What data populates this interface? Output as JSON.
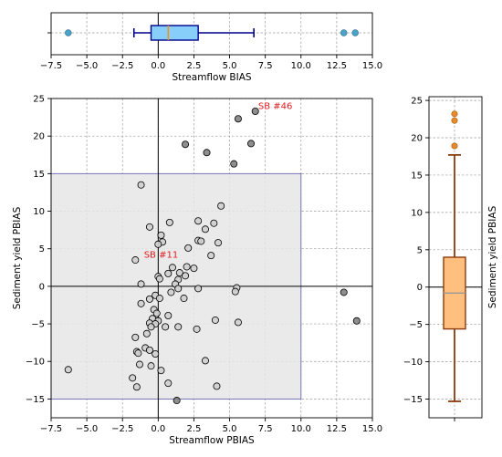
{
  "chart_data": [
    {
      "type": "boxplot",
      "orientation": "horizontal",
      "xlabel": "Streamflow BIAS",
      "xlim": [
        -7.5,
        15.0
      ],
      "xticks": [
        -7.5,
        -5.0,
        -2.5,
        0.0,
        2.5,
        5.0,
        7.5,
        10.0,
        12.5,
        15.0
      ],
      "stats": {
        "whisker_low": -1.7,
        "q1": -0.5,
        "median": 0.7,
        "q3": 2.8,
        "whisker_high": 6.7
      },
      "outliers": [
        -6.3,
        13.0,
        13.8
      ],
      "colors": {
        "box_fill": "#87cefa",
        "box_edge": "#00008b",
        "median": "#ff8c00",
        "outlier": "#4aa3c7"
      },
      "zero_line": true,
      "grid": true
    },
    {
      "type": "scatter",
      "xlabel": "Streamflow PBIAS",
      "ylabel": "Sediment yield PBIAS",
      "xlim": [
        -7.5,
        15.0
      ],
      "ylim": [
        -17.5,
        25.0
      ],
      "xticks": [
        -7.5,
        -5.0,
        -2.5,
        0.0,
        2.5,
        5.0,
        7.5,
        10.0,
        12.5,
        15.0
      ],
      "yticks": [
        -15,
        -10,
        -5,
        0,
        5,
        10,
        15,
        20,
        25
      ],
      "shaded_region": {
        "x": [
          -7.5,
          10.0
        ],
        "y": [
          -15.0,
          15.0
        ],
        "fill": "#e6e6e6",
        "edge": "#6a6ab8"
      },
      "zero_lines": true,
      "grid": true,
      "annotations": [
        {
          "text": "SB #46",
          "x": 7.0,
          "y": 23.6
        },
        {
          "text": "SB #11",
          "x": -1.0,
          "y": 3.8
        }
      ],
      "points": [
        {
          "x": -6.3,
          "y": -11.1,
          "in_range": true
        },
        {
          "x": -1.2,
          "y": 13.5,
          "in_range": true
        },
        {
          "x": -0.6,
          "y": 7.9,
          "in_range": true
        },
        {
          "x": 0.2,
          "y": 6.8,
          "in_range": true
        },
        {
          "x": 0.3,
          "y": 5.9,
          "in_range": true
        },
        {
          "x": 0.0,
          "y": 5.6,
          "in_range": true
        },
        {
          "x": 0.8,
          "y": 8.5,
          "in_range": true
        },
        {
          "x": 2.8,
          "y": 8.7,
          "in_range": true
        },
        {
          "x": 3.3,
          "y": 7.6,
          "in_range": true
        },
        {
          "x": 3.9,
          "y": 8.4,
          "in_range": true
        },
        {
          "x": 4.4,
          "y": 10.7,
          "in_range": true
        },
        {
          "x": 2.8,
          "y": 6.1,
          "in_range": true
        },
        {
          "x": 3.0,
          "y": 6.0,
          "in_range": true
        },
        {
          "x": 2.1,
          "y": 5.1,
          "in_range": true
        },
        {
          "x": 4.2,
          "y": 5.8,
          "in_range": true
        },
        {
          "x": 3.7,
          "y": 4.1,
          "in_range": true
        },
        {
          "x": -1.6,
          "y": 3.5,
          "in_range": true
        },
        {
          "x": 1.0,
          "y": 2.5,
          "in_range": true
        },
        {
          "x": 2.0,
          "y": 2.6,
          "in_range": true
        },
        {
          "x": 2.5,
          "y": 2.4,
          "in_range": true
        },
        {
          "x": 0.7,
          "y": 1.7,
          "in_range": true
        },
        {
          "x": 1.5,
          "y": 1.8,
          "in_range": true
        },
        {
          "x": 1.9,
          "y": 1.4,
          "in_range": true
        },
        {
          "x": 1.4,
          "y": 0.9,
          "in_range": true
        },
        {
          "x": 0.0,
          "y": 1.3,
          "in_range": true
        },
        {
          "x": 0.1,
          "y": 1.0,
          "in_range": true
        },
        {
          "x": 1.2,
          "y": 0.3,
          "in_range": true
        },
        {
          "x": -1.2,
          "y": 0.3,
          "in_range": true
        },
        {
          "x": 1.4,
          "y": -0.3,
          "in_range": true
        },
        {
          "x": 2.8,
          "y": -0.3,
          "in_range": true
        },
        {
          "x": 0.9,
          "y": -0.8,
          "in_range": true
        },
        {
          "x": 1.8,
          "y": -1.6,
          "in_range": true
        },
        {
          "x": 5.5,
          "y": -0.2,
          "in_range": true
        },
        {
          "x": 5.4,
          "y": -0.7,
          "in_range": true
        },
        {
          "x": -0.2,
          "y": -1.2,
          "in_range": true
        },
        {
          "x": 0.1,
          "y": -1.6,
          "in_range": true
        },
        {
          "x": -0.6,
          "y": -1.7,
          "in_range": true
        },
        {
          "x": -1.2,
          "y": -2.3,
          "in_range": true
        },
        {
          "x": -0.3,
          "y": -3.1,
          "in_range": true
        },
        {
          "x": -0.1,
          "y": -3.6,
          "in_range": true
        },
        {
          "x": 0.7,
          "y": -3.9,
          "in_range": true
        },
        {
          "x": -0.4,
          "y": -4.3,
          "in_range": true
        },
        {
          "x": 0.0,
          "y": -4.6,
          "in_range": true
        },
        {
          "x": -0.6,
          "y": -4.9,
          "in_range": true
        },
        {
          "x": -0.2,
          "y": -5.0,
          "in_range": true
        },
        {
          "x": -0.5,
          "y": -5.4,
          "in_range": true
        },
        {
          "x": 0.5,
          "y": -5.4,
          "in_range": true
        },
        {
          "x": 1.4,
          "y": -5.4,
          "in_range": true
        },
        {
          "x": 2.7,
          "y": -5.7,
          "in_range": true
        },
        {
          "x": -0.8,
          "y": -6.3,
          "in_range": true
        },
        {
          "x": -1.6,
          "y": -6.8,
          "in_range": true
        },
        {
          "x": 4.0,
          "y": -4.5,
          "in_range": true
        },
        {
          "x": 5.6,
          "y": -4.8,
          "in_range": true
        },
        {
          "x": -0.9,
          "y": -8.2,
          "in_range": true
        },
        {
          "x": -1.5,
          "y": -8.7,
          "in_range": true
        },
        {
          "x": -1.4,
          "y": -8.9,
          "in_range": true
        },
        {
          "x": -0.6,
          "y": -8.5,
          "in_range": true
        },
        {
          "x": -0.2,
          "y": -9.0,
          "in_range": true
        },
        {
          "x": -1.3,
          "y": -10.4,
          "in_range": true
        },
        {
          "x": -0.5,
          "y": -10.6,
          "in_range": true
        },
        {
          "x": 0.2,
          "y": -11.2,
          "in_range": true
        },
        {
          "x": 3.3,
          "y": -9.9,
          "in_range": true
        },
        {
          "x": -1.8,
          "y": -12.2,
          "in_range": true
        },
        {
          "x": -1.5,
          "y": -13.4,
          "in_range": true
        },
        {
          "x": 0.7,
          "y": -12.9,
          "in_range": true
        },
        {
          "x": 4.1,
          "y": -13.3,
          "in_range": true
        },
        {
          "x": 1.3,
          "y": -15.2,
          "in_range": false
        },
        {
          "x": 1.9,
          "y": 18.9,
          "in_range": false
        },
        {
          "x": 3.4,
          "y": 17.8,
          "in_range": false
        },
        {
          "x": 5.3,
          "y": 16.3,
          "in_range": false
        },
        {
          "x": 5.6,
          "y": 22.3,
          "in_range": false
        },
        {
          "x": 6.5,
          "y": 19.0,
          "in_range": false
        },
        {
          "x": 6.8,
          "y": 23.3,
          "in_range": false
        },
        {
          "x": 13.0,
          "y": -0.8,
          "in_range": false
        },
        {
          "x": 13.9,
          "y": -4.6,
          "in_range": false
        }
      ],
      "colors": {
        "point_in": "#cfcfcf",
        "point_out": "#7a7a7a",
        "edge": "#000000"
      }
    },
    {
      "type": "boxplot",
      "orientation": "vertical",
      "ylabel": "Sediment yield PBIAS",
      "ylim": [
        -17.5,
        25.5
      ],
      "yticks": [
        -15,
        -10,
        -5,
        0,
        5,
        10,
        15,
        20,
        25
      ],
      "stats": {
        "whisker_low": -15.3,
        "q1": -5.6,
        "median": -0.8,
        "q3": 4.0,
        "whisker_high": 17.7
      },
      "outliers": [
        18.9,
        22.3,
        23.2
      ],
      "colors": {
        "box_fill": "#ffbf7f",
        "box_edge": "#8b3a0f",
        "median": "#999999",
        "outlier": "#e88a2a"
      },
      "zero_line": true,
      "grid": true
    }
  ]
}
